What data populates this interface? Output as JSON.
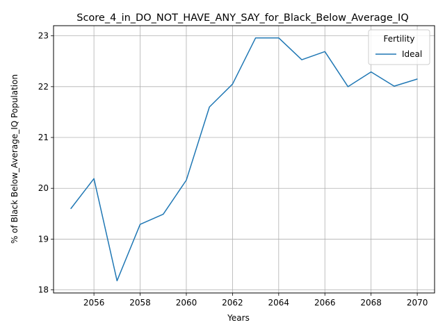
{
  "chart_data": {
    "type": "line",
    "title": "Score_4_in_DO_NOT_HAVE_ANY_SAY_for_Black_Below_Average_IQ",
    "xlabel": "Years",
    "ylabel": "% of Black Below_Average_IQ Population",
    "x": [
      2055,
      2056,
      2057,
      2058,
      2059,
      2060,
      2061,
      2062,
      2063,
      2064,
      2065,
      2066,
      2067,
      2068,
      2069,
      2070
    ],
    "series": [
      {
        "name": "Ideal",
        "color": "#1f77b4",
        "values": [
          19.6,
          20.19,
          18.18,
          19.29,
          19.49,
          20.16,
          21.6,
          22.05,
          22.96,
          22.96,
          22.53,
          22.69,
          22.0,
          22.29,
          22.01,
          22.15
        ]
      }
    ],
    "xticks": [
      "2056",
      "2058",
      "2060",
      "2062",
      "2064",
      "2066",
      "2068",
      "2070"
    ],
    "yticks": [
      "18",
      "19",
      "20",
      "21",
      "22",
      "23"
    ],
    "xlim": [
      2054.25,
      2070.75
    ],
    "ylim": [
      17.94,
      23.2
    ],
    "grid": true,
    "legend": {
      "title": "Fertility",
      "placement": "top-right"
    }
  }
}
